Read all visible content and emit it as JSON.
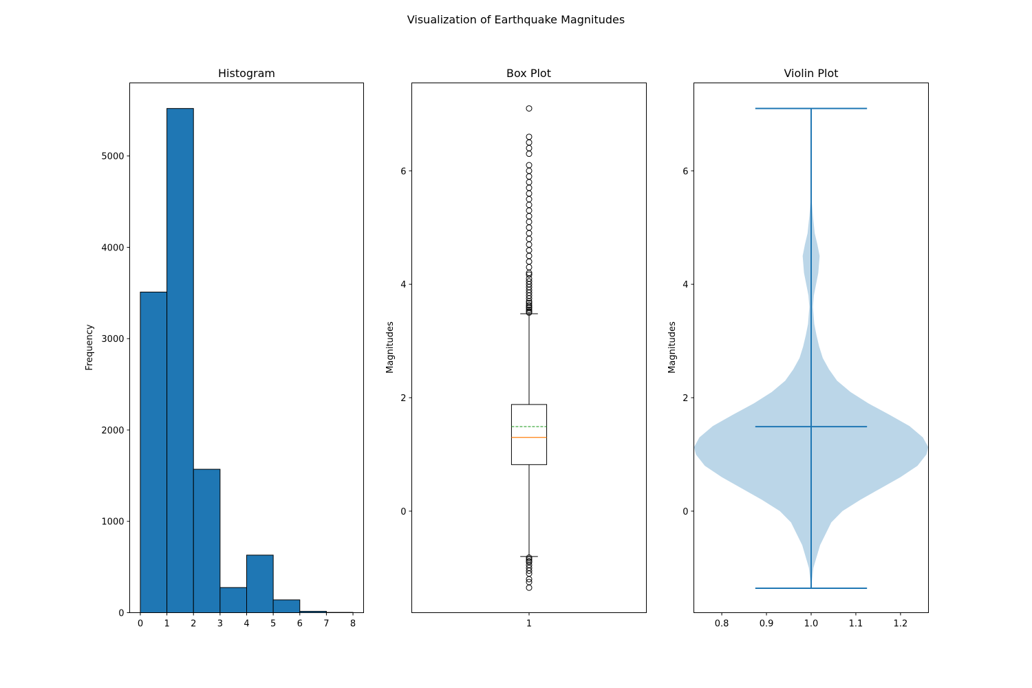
{
  "figure": {
    "suptitle": "Visualization of Earthquake Magnitudes"
  },
  "chart_data": [
    {
      "type": "bar",
      "subtype": "histogram",
      "title": "Histogram",
      "xlabel": "",
      "ylabel": "Frequency",
      "bin_edges": [
        0,
        1,
        2,
        3,
        4,
        5,
        6,
        7,
        8
      ],
      "values": [
        3510,
        5520,
        1570,
        275,
        630,
        140,
        15,
        3
      ],
      "xlim": [
        -0.4,
        8.4
      ],
      "ylim": [
        0,
        5800
      ],
      "xticks": [
        0,
        1,
        2,
        3,
        4,
        5,
        6,
        7,
        8
      ],
      "yticks": [
        0,
        1000,
        2000,
        3000,
        4000,
        5000
      ],
      "colors": {
        "bar_fill": "#1f77b4",
        "bar_edge": "#000000"
      },
      "grid": false
    },
    {
      "type": "box",
      "title": "Box Plot",
      "xlabel": "",
      "ylabel": "Magnitudes",
      "categories": [
        "1"
      ],
      "stats": {
        "whisker_low": -0.8,
        "q1": 0.82,
        "median": 1.3,
        "mean": 1.49,
        "q3": 1.88,
        "whisker_high": 3.48
      },
      "outliers_high": [
        3.5,
        3.52,
        3.55,
        3.58,
        3.6,
        3.63,
        3.67,
        3.7,
        3.75,
        3.8,
        3.85,
        3.9,
        3.95,
        4.0,
        4.05,
        4.1,
        4.17,
        4.2,
        4.3,
        4.4,
        4.5,
        4.6,
        4.7,
        4.8,
        4.9,
        5.0,
        5.1,
        5.2,
        5.3,
        5.4,
        5.5,
        5.6,
        5.7,
        5.8,
        5.9,
        6.0,
        6.1,
        6.3,
        6.4,
        6.5,
        6.6,
        7.1
      ],
      "outliers_low": [
        -0.82,
        -0.85,
        -0.88,
        -0.9,
        -0.95,
        -1.0,
        -1.05,
        -1.1,
        -1.2,
        -1.25,
        -1.35
      ],
      "xlim": [
        0.5,
        1.5
      ],
      "ylim": [
        -1.79,
        7.55
      ],
      "yticks": [
        0,
        2,
        4,
        6
      ],
      "colors": {
        "box": "#000000",
        "median": "#ff7f0e",
        "mean": "#2ca02c",
        "outlier": "#000000"
      },
      "grid": false
    },
    {
      "type": "violin",
      "title": "Violin Plot",
      "xlabel": "",
      "ylabel": "Magnitudes",
      "position": 1.0,
      "min": -1.36,
      "max": 7.1,
      "mean": 1.49,
      "density_profile": [
        [
          -1.36,
          0.0
        ],
        [
          -1.0,
          0.005
        ],
        [
          -0.6,
          0.02
        ],
        [
          -0.2,
          0.045
        ],
        [
          0.0,
          0.07
        ],
        [
          0.2,
          0.11
        ],
        [
          0.4,
          0.155
        ],
        [
          0.6,
          0.2
        ],
        [
          0.8,
          0.238
        ],
        [
          1.0,
          0.258
        ],
        [
          1.13,
          0.262
        ],
        [
          1.3,
          0.25
        ],
        [
          1.5,
          0.22
        ],
        [
          1.7,
          0.175
        ],
        [
          1.9,
          0.128
        ],
        [
          2.1,
          0.088
        ],
        [
          2.3,
          0.058
        ],
        [
          2.5,
          0.04
        ],
        [
          2.7,
          0.026
        ],
        [
          2.9,
          0.018
        ],
        [
          3.1,
          0.012
        ],
        [
          3.3,
          0.007
        ],
        [
          3.6,
          0.004
        ],
        [
          3.8,
          0.006
        ],
        [
          4.0,
          0.011
        ],
        [
          4.2,
          0.016
        ],
        [
          4.5,
          0.019
        ],
        [
          4.7,
          0.014
        ],
        [
          4.9,
          0.008
        ],
        [
          5.2,
          0.004
        ],
        [
          5.6,
          0.0
        ]
      ],
      "xlim": [
        0.7375,
        1.2625
      ],
      "ylim": [
        -1.79,
        7.55
      ],
      "xticks": [
        0.8,
        0.9,
        1.0,
        1.1,
        1.2
      ],
      "xtick_labels": [
        "0.8",
        "0.9",
        "1.0",
        "1.1",
        "1.2"
      ],
      "yticks": [
        0,
        2,
        4,
        6
      ],
      "colors": {
        "body": "#1f77b4",
        "lines": "#1f77b4"
      },
      "body_alpha": 0.3,
      "grid": false
    }
  ]
}
